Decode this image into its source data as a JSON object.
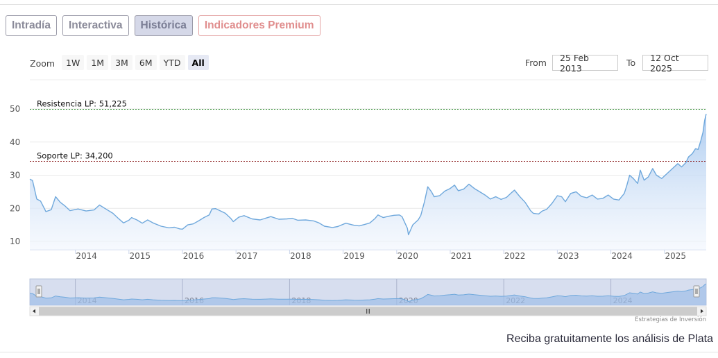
{
  "tabs": [
    {
      "label": "Intradía",
      "state": "normal"
    },
    {
      "label": "Interactiva",
      "state": "normal"
    },
    {
      "label": "Histórica",
      "state": "active"
    },
    {
      "label": "Indicadores Premium",
      "state": "premium"
    }
  ],
  "zoom": {
    "label": "Zoom",
    "buttons": [
      "1W",
      "1M",
      "3M",
      "6M",
      "YTD",
      "All"
    ],
    "active": "All"
  },
  "range": {
    "from_label": "From",
    "from_value": "25 Feb 2013",
    "to_label": "To",
    "to_value": "12 Oct 2025"
  },
  "branding": "Estrategias de Inversión",
  "cta_text": "Reciba gratuitamente los análisis de Plata",
  "colors": {
    "series_line": "#6fa8dc",
    "area_top": "#a9c9ef",
    "area_bottom": "#f1f6fd",
    "resistance_line": "#2e8b2e",
    "support_line": "#8b1a1a",
    "navigator_fill": "#c9d3ea",
    "tab_active_bg": "#d5d8e8",
    "premium_text": "#e08d8d"
  },
  "chart_data": {
    "type": "area",
    "x_unit": "year",
    "xlim": [
      2013.15,
      2025.78
    ],
    "ylim": [
      10,
      50
    ],
    "y_ticks": [
      10,
      20,
      30,
      40,
      50
    ],
    "x_ticks": [
      2014,
      2015,
      2016,
      2017,
      2018,
      2019,
      2020,
      2021,
      2022,
      2023,
      2024,
      2025
    ],
    "navigator_ticks": [
      2014,
      2016,
      2018,
      2020,
      2022,
      2024
    ],
    "grid": true,
    "series": [
      {
        "points": [
          [
            2013.15,
            28.8
          ],
          [
            2013.2,
            28.4
          ],
          [
            2013.28,
            22.8
          ],
          [
            2013.35,
            22.2
          ],
          [
            2013.45,
            19.0
          ],
          [
            2013.55,
            19.6
          ],
          [
            2013.63,
            23.5
          ],
          [
            2013.72,
            21.8
          ],
          [
            2013.8,
            20.8
          ],
          [
            2013.9,
            19.3
          ],
          [
            2014.05,
            19.8
          ],
          [
            2014.2,
            19.2
          ],
          [
            2014.35,
            19.5
          ],
          [
            2014.45,
            21.0
          ],
          [
            2014.55,
            20.0
          ],
          [
            2014.7,
            18.5
          ],
          [
            2014.8,
            17.0
          ],
          [
            2014.9,
            15.6
          ],
          [
            2015.0,
            16.4
          ],
          [
            2015.05,
            17.2
          ],
          [
            2015.15,
            16.5
          ],
          [
            2015.25,
            15.5
          ],
          [
            2015.35,
            16.5
          ],
          [
            2015.45,
            15.6
          ],
          [
            2015.6,
            14.6
          ],
          [
            2015.75,
            14.1
          ],
          [
            2015.85,
            14.3
          ],
          [
            2015.95,
            13.8
          ],
          [
            2016.0,
            13.7
          ],
          [
            2016.1,
            15.0
          ],
          [
            2016.2,
            15.3
          ],
          [
            2016.3,
            16.2
          ],
          [
            2016.4,
            17.2
          ],
          [
            2016.5,
            18.0
          ],
          [
            2016.55,
            19.8
          ],
          [
            2016.62,
            19.9
          ],
          [
            2016.7,
            19.3
          ],
          [
            2016.8,
            18.5
          ],
          [
            2016.9,
            17.0
          ],
          [
            2016.95,
            16.0
          ],
          [
            2017.05,
            17.3
          ],
          [
            2017.15,
            17.8
          ],
          [
            2017.3,
            16.8
          ],
          [
            2017.45,
            16.5
          ],
          [
            2017.55,
            17.0
          ],
          [
            2017.65,
            17.5
          ],
          [
            2017.8,
            16.7
          ],
          [
            2017.95,
            16.8
          ],
          [
            2018.05,
            17.0
          ],
          [
            2018.15,
            16.4
          ],
          [
            2018.3,
            16.5
          ],
          [
            2018.45,
            16.2
          ],
          [
            2018.55,
            15.6
          ],
          [
            2018.65,
            14.6
          ],
          [
            2018.8,
            14.2
          ],
          [
            2018.9,
            14.5
          ],
          [
            2019.05,
            15.5
          ],
          [
            2019.2,
            14.9
          ],
          [
            2019.3,
            14.7
          ],
          [
            2019.4,
            15.1
          ],
          [
            2019.5,
            15.6
          ],
          [
            2019.6,
            17.0
          ],
          [
            2019.65,
            18.0
          ],
          [
            2019.75,
            17.2
          ],
          [
            2019.85,
            17.6
          ],
          [
            2019.95,
            17.9
          ],
          [
            2020.05,
            18.0
          ],
          [
            2020.1,
            17.5
          ],
          [
            2020.2,
            14.0
          ],
          [
            2020.22,
            12.0
          ],
          [
            2020.3,
            15.0
          ],
          [
            2020.4,
            16.5
          ],
          [
            2020.45,
            17.8
          ],
          [
            2020.52,
            22.0
          ],
          [
            2020.58,
            26.5
          ],
          [
            2020.65,
            25.0
          ],
          [
            2020.7,
            23.5
          ],
          [
            2020.8,
            23.8
          ],
          [
            2020.9,
            25.2
          ],
          [
            2021.0,
            26.0
          ],
          [
            2021.08,
            27.0
          ],
          [
            2021.15,
            25.3
          ],
          [
            2021.25,
            25.8
          ],
          [
            2021.35,
            27.3
          ],
          [
            2021.45,
            26.0
          ],
          [
            2021.55,
            25.0
          ],
          [
            2021.65,
            24.0
          ],
          [
            2021.75,
            22.8
          ],
          [
            2021.85,
            23.5
          ],
          [
            2021.95,
            22.7
          ],
          [
            2022.05,
            23.3
          ],
          [
            2022.15,
            24.8
          ],
          [
            2022.2,
            25.5
          ],
          [
            2022.3,
            23.5
          ],
          [
            2022.4,
            21.8
          ],
          [
            2022.5,
            19.3
          ],
          [
            2022.55,
            18.5
          ],
          [
            2022.65,
            18.3
          ],
          [
            2022.72,
            19.2
          ],
          [
            2022.8,
            19.7
          ],
          [
            2022.9,
            21.5
          ],
          [
            2023.0,
            23.8
          ],
          [
            2023.08,
            23.5
          ],
          [
            2023.15,
            22.0
          ],
          [
            2023.25,
            24.5
          ],
          [
            2023.35,
            25.0
          ],
          [
            2023.45,
            23.6
          ],
          [
            2023.55,
            23.2
          ],
          [
            2023.65,
            24.0
          ],
          [
            2023.75,
            22.8
          ],
          [
            2023.85,
            23.0
          ],
          [
            2023.95,
            24.0
          ],
          [
            2024.05,
            22.8
          ],
          [
            2024.15,
            22.5
          ],
          [
            2024.25,
            24.5
          ],
          [
            2024.3,
            27.0
          ],
          [
            2024.35,
            30.0
          ],
          [
            2024.42,
            29.0
          ],
          [
            2024.5,
            27.5
          ],
          [
            2024.55,
            31.5
          ],
          [
            2024.62,
            28.5
          ],
          [
            2024.7,
            29.5
          ],
          [
            2024.78,
            32.0
          ],
          [
            2024.85,
            30.0
          ],
          [
            2024.95,
            29.0
          ],
          [
            2025.05,
            30.5
          ],
          [
            2025.15,
            32.0
          ],
          [
            2025.25,
            33.5
          ],
          [
            2025.32,
            32.5
          ],
          [
            2025.4,
            33.8
          ],
          [
            2025.45,
            35.5
          ],
          [
            2025.52,
            36.5
          ],
          [
            2025.58,
            38.0
          ],
          [
            2025.63,
            37.8
          ],
          [
            2025.68,
            40.5
          ],
          [
            2025.72,
            43.0
          ],
          [
            2025.75,
            46.5
          ],
          [
            2025.78,
            48.5
          ]
        ]
      }
    ],
    "annotations": [
      {
        "label": "Resistencia LP: 51,225",
        "y": 51.225,
        "style": "dashed",
        "color": "#2e8b2e"
      },
      {
        "label": "Soporte LP: 34,200",
        "y": 34.2,
        "style": "dashed",
        "color": "#8b1a1a"
      }
    ]
  }
}
